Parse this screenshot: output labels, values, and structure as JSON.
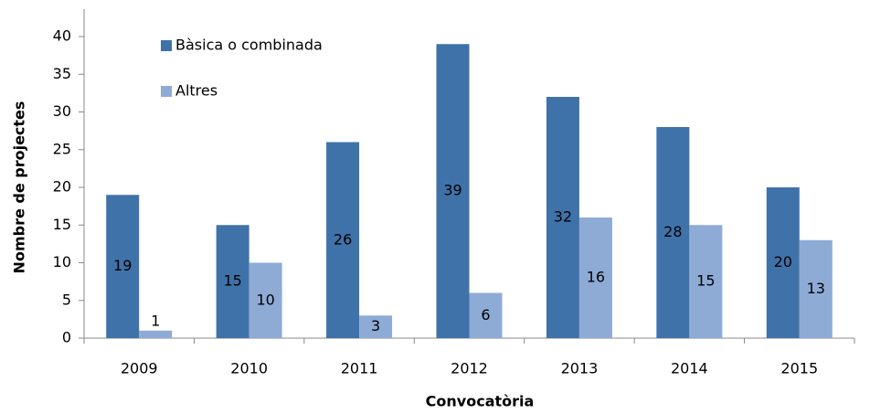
{
  "chart_data": {
    "type": "bar",
    "x_label": "Convocatòria",
    "y_label": "Nombre de projectes",
    "categories": [
      "2009",
      "2010",
      "2011",
      "2012",
      "2013",
      "2014",
      "2015"
    ],
    "series": [
      {
        "name": "Bàsica o combinada",
        "color": "#3f72a9",
        "values": [
          19,
          15,
          26,
          39,
          32,
          28,
          20
        ]
      },
      {
        "name": "Altres",
        "color": "#8eabd6",
        "values": [
          1,
          10,
          3,
          6,
          16,
          15,
          13
        ]
      }
    ],
    "ylim": [
      0,
      40
    ],
    "yticks": [
      0,
      5,
      10,
      15,
      20,
      25,
      30,
      35,
      40
    ],
    "legend": "upper left"
  }
}
